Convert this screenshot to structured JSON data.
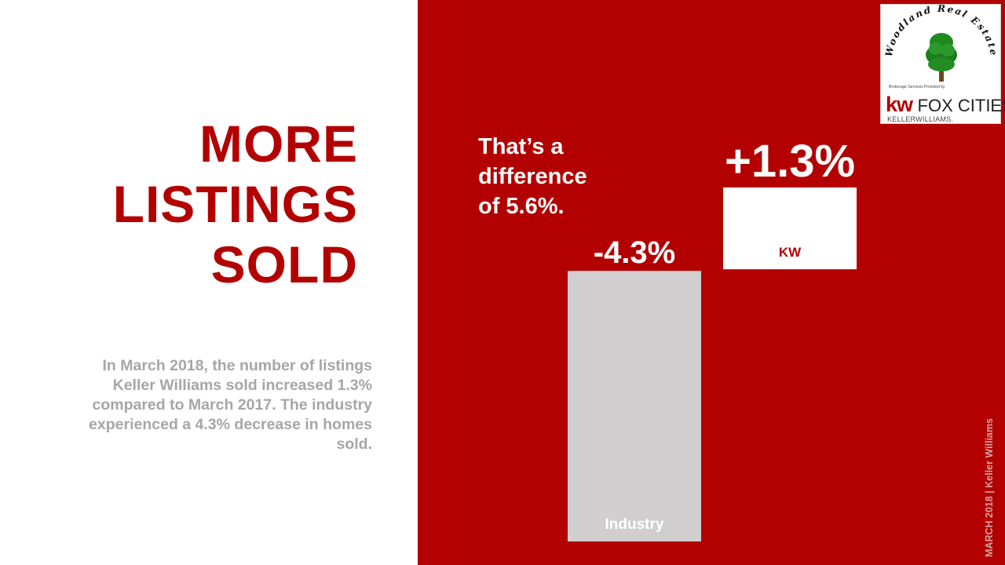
{
  "headline": {
    "lines": [
      "MORE",
      "LISTINGS",
      "SOLD"
    ]
  },
  "description": "In March 2018, the number of listings Keller Williams sold increased 1.3% compared to March 2017. The industry experienced a 4.3% decrease in homes sold.",
  "difference": {
    "lines": [
      "That’s a",
      "difference",
      "of 5.6%."
    ]
  },
  "logo": {
    "arc_text": "Woodland Real Estate",
    "tagline": "Brokerage Services Provided by",
    "kw": "kw",
    "city": "FOX CITIES",
    "brand": "KELLERWILLIAMS."
  },
  "side_label": "MARCH 2018 | Keller Williams",
  "colors": {
    "accent": "#b30000",
    "industry_bar": "#d0cece",
    "kw_bar": "#ffffff",
    "gray_text": "#a6a6a6"
  },
  "chart_data": {
    "type": "bar",
    "categories": [
      "Industry",
      "KW"
    ],
    "values": [
      -4.3,
      1.3
    ],
    "data_labels": [
      "-4.3%",
      "+1.3%"
    ],
    "title": "",
    "xlabel": "",
    "ylabel": "",
    "ylim": [
      -5,
      2
    ],
    "grid": false,
    "legend": "none"
  }
}
